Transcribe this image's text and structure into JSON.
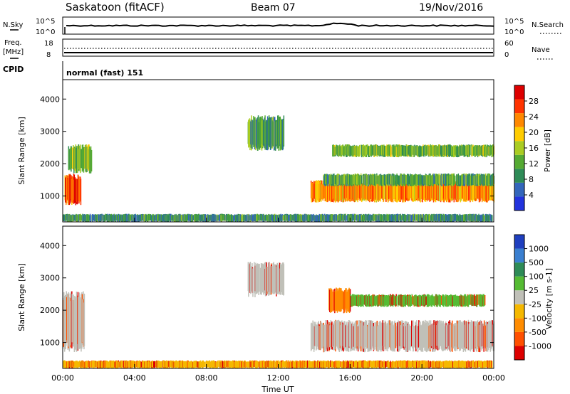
{
  "header": {
    "station": "Saskatoon (fitACF)",
    "beam": "Beam 07",
    "date": "19/Nov/2016"
  },
  "noise_panel": {
    "left_label": "N.Sky",
    "right_label": "N.Search",
    "left_ticks": [
      "10^5",
      "10^0"
    ],
    "right_ticks": [
      "10^5",
      "10^0"
    ]
  },
  "freq_panel": {
    "left_label_1": "Freq.",
    "left_label_2": "[MHz]",
    "right_label": "Nave",
    "left_ticks": [
      "18",
      "8"
    ],
    "right_ticks": [
      "60",
      "0"
    ]
  },
  "cpid": {
    "label": "CPID",
    "value": "normal (fast) 151"
  },
  "colors": {
    "power": [
      "#2233dd",
      "#3366bb",
      "#2e8b57",
      "#55aa33",
      "#aacc22",
      "#ffcc00",
      "#ff8800",
      "#ff3300",
      "#dd0000"
    ],
    "velocity": [
      "#1f3fbf",
      "#3a7fd0",
      "#2e8b57",
      "#55bb33",
      "#c0c0b8",
      "#f5b800",
      "#ff8c00",
      "#ff5000",
      "#dd0000"
    ]
  },
  "chart_data": [
    {
      "type": "heatmap",
      "name": "power",
      "ylabel": "Slant Range [km]",
      "yticks": [
        "1000",
        "2000",
        "3000",
        "4000"
      ],
      "ylim": [
        200,
        4600
      ],
      "xlim": [
        0,
        24
      ],
      "colorbar": {
        "label": "Power [dB]",
        "ticks": [
          "4",
          "8",
          "12",
          "16",
          "20",
          "24",
          "28"
        ],
        "range": [
          0,
          30
        ]
      },
      "regions": [
        {
          "t": [
            0.1,
            1.0
          ],
          "r": [
            700,
            1700
          ],
          "level": 26
        },
        {
          "t": [
            0.3,
            1.6
          ],
          "r": [
            1700,
            2600
          ],
          "level": 12
        },
        {
          "t": [
            0.0,
            23.9
          ],
          "r": [
            200,
            450
          ],
          "level": 8
        },
        {
          "t": [
            10.3,
            12.3
          ],
          "r": [
            2400,
            3500
          ],
          "level": 10
        },
        {
          "t": [
            13.8,
            24.0
          ],
          "r": [
            800,
            1500
          ],
          "level": 22
        },
        {
          "t": [
            14.5,
            24.0
          ],
          "r": [
            1300,
            1700
          ],
          "level": 10
        },
        {
          "t": [
            15.0,
            24.0
          ],
          "r": [
            2200,
            2600
          ],
          "level": 12
        }
      ]
    },
    {
      "type": "heatmap",
      "name": "velocity",
      "ylabel": "Slant Range [km]",
      "yticks": [
        "1000",
        "2000",
        "3000",
        "4000"
      ],
      "ylim": [
        200,
        4600
      ],
      "xlim": [
        0,
        24
      ],
      "xlabel": "Time UT",
      "xticks": [
        "00:00",
        "04:00",
        "08:00",
        "12:00",
        "16:00",
        "20:00",
        "00:00"
      ],
      "colorbar": {
        "label": "Velocity [m s-1]",
        "ticks": [
          "1000",
          "500",
          "100",
          "25",
          "-25",
          "-100",
          "-500",
          "-1000"
        ]
      },
      "regions": [
        {
          "t": [
            0.0,
            1.2
          ],
          "r": [
            700,
            2600
          ],
          "vel": 0
        },
        {
          "t": [
            0.0,
            23.9
          ],
          "r": [
            200,
            450
          ],
          "vel": -50
        },
        {
          "t": [
            10.3,
            12.3
          ],
          "r": [
            2400,
            3500
          ],
          "vel": 0
        },
        {
          "t": [
            13.8,
            24.0
          ],
          "r": [
            700,
            1700
          ],
          "vel": 0
        },
        {
          "t": [
            14.8,
            16.0
          ],
          "r": [
            1900,
            2700
          ],
          "vel": -200
        },
        {
          "t": [
            16.0,
            23.5
          ],
          "r": [
            2100,
            2500
          ],
          "vel": 80
        }
      ]
    }
  ]
}
